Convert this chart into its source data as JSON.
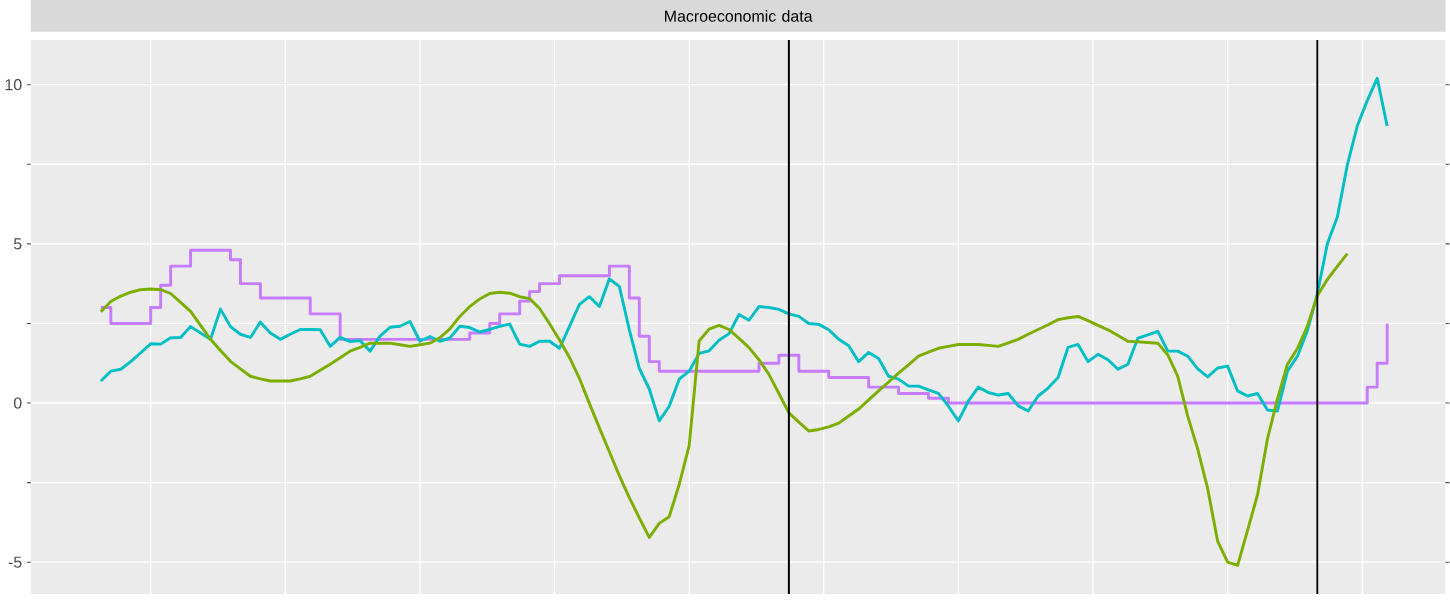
{
  "chart_data": {
    "type": "line",
    "title": "Macroeconomic data",
    "grid": true,
    "tick_labels": "y",
    "categories": [
      null,
      null,
      null,
      null,
      null,
      null,
      null,
      null,
      null,
      null,
      null,
      null,
      null,
      null,
      null,
      null,
      null,
      null,
      null,
      null,
      null,
      null,
      null,
      null,
      null,
      null,
      null,
      null,
      null,
      null,
      null,
      null,
      null,
      null,
      null,
      null,
      null,
      null,
      null,
      null,
      null,
      null,
      null,
      null,
      null,
      null,
      null,
      null,
      null,
      null,
      null,
      null,
      null,
      null,
      null,
      null,
      null,
      null,
      null,
      null,
      null,
      null,
      null,
      null,
      null,
      null,
      null,
      null,
      null,
      null,
      null,
      null,
      null,
      null,
      null,
      null,
      null,
      null,
      null,
      null,
      null,
      null,
      null,
      null,
      null,
      null,
      null,
      null,
      null,
      null,
      null,
      null,
      null,
      null,
      null,
      null,
      null,
      null,
      null,
      null,
      null,
      null,
      null,
      null,
      null,
      null,
      null,
      null,
      null,
      null,
      null,
      null,
      null,
      null,
      null,
      null,
      null,
      null,
      null,
      null,
      null,
      null,
      null,
      null,
      null,
      null,
      null,
      null,
      null,
      null
    ],
    "ylim": [
      -6,
      11.4
    ],
    "yticks": [
      -5,
      {
        "value": -2.5,
        "label": null
      },
      0,
      {
        "value": 2.5,
        "label": null
      },
      5,
      {
        "value": 7.5,
        "label": null
      },
      10
    ],
    "series": [
      {
        "type": "step",
        "color": "#c77cff",
        "values": [
          3.0,
          2.5,
          2.5,
          2.5,
          2.5,
          3.0,
          3.7,
          4.3,
          4.3,
          4.8,
          4.8,
          4.8,
          4.8,
          4.5,
          3.75,
          3.75,
          3.3,
          3.3,
          3.3,
          3.3,
          3.3,
          2.8,
          2.8,
          2.8,
          2.0,
          2.0,
          2.0,
          2.0,
          2.0,
          2.0,
          2.0,
          2.0,
          2.0,
          2.0,
          2.0,
          2.0,
          2.0,
          2.2,
          2.2,
          2.5,
          2.8,
          2.8,
          3.2,
          3.5,
          3.75,
          3.75,
          4.0,
          4.0,
          4.0,
          4.0,
          4.0,
          4.3,
          4.3,
          3.3,
          2.1,
          1.3,
          1.0,
          1.0,
          1.0,
          1.0,
          1.0,
          1.0,
          1.0,
          1.0,
          1.0,
          1.0,
          1.25,
          1.25,
          1.5,
          1.5,
          1.0,
          1.0,
          1.0,
          0.8,
          0.8,
          0.8,
          0.8,
          0.5,
          0.5,
          0.5,
          0.3,
          0.3,
          0.3,
          0.15,
          0.15,
          0,
          0,
          0,
          0,
          0,
          0,
          0,
          0,
          0,
          0,
          0,
          0,
          0,
          0,
          0,
          0,
          0,
          0,
          0,
          0,
          0,
          0,
          0,
          0,
          0,
          0,
          0,
          0,
          0,
          0,
          0,
          0,
          0,
          0,
          0,
          0,
          0,
          0,
          0,
          0,
          0,
          0,
          0.5,
          1.25,
          2.5
        ]
      },
      {
        "color": "#00bfc4",
        "values": [
          0.69,
          1.0,
          1.06,
          1.3,
          1.58,
          1.86,
          1.85,
          2.05,
          2.06,
          2.4,
          2.2,
          2.0,
          2.95,
          2.4,
          2.16,
          2.06,
          2.54,
          2.2,
          2.0,
          2.16,
          2.31,
          2.31,
          2.3,
          1.78,
          2.06,
          1.93,
          1.96,
          1.63,
          2.1,
          2.38,
          2.41,
          2.56,
          1.94,
          2.09,
          1.94,
          2.04,
          2.41,
          2.37,
          2.23,
          2.31,
          2.41,
          2.48,
          1.85,
          1.78,
          1.94,
          1.94,
          1.72,
          2.41,
          3.1,
          3.34,
          3.03,
          3.9,
          3.66,
          2.3,
          1.09,
          0.44,
          -0.56,
          -0.1,
          0.75,
          1.0,
          1.56,
          1.64,
          1.97,
          2.18,
          2.78,
          2.6,
          3.03,
          3.0,
          2.94,
          2.8,
          2.72,
          2.5,
          2.47,
          2.3,
          2.0,
          1.8,
          1.3,
          1.59,
          1.4,
          0.84,
          0.75,
          0.53,
          0.53,
          0.41,
          0.3,
          -0.1,
          -0.56,
          0.06,
          0.5,
          0.33,
          0.25,
          0.3,
          -0.09,
          -0.25,
          0.22,
          0.47,
          0.8,
          1.75,
          1.84,
          1.3,
          1.53,
          1.36,
          1.06,
          1.22,
          2.04,
          2.14,
          2.25,
          1.63,
          1.63,
          1.47,
          1.07,
          0.82,
          1.1,
          1.16,
          0.38,
          0.22,
          0.3,
          -0.22,
          -0.25,
          1.0,
          1.47,
          2.27,
          3.44,
          5.0,
          5.84,
          7.47,
          8.7,
          9.5,
          10.2,
          8.7
        ]
      },
      {
        "color": "#7cae00",
        "values": [
          2.87,
          3.19,
          3.36,
          3.48,
          3.56,
          3.58,
          3.56,
          3.44,
          3.16,
          2.88,
          2.44,
          2.0,
          1.65,
          1.31,
          1.07,
          0.84,
          0.76,
          0.69,
          0.69,
          0.69,
          0.76,
          0.84,
          1.03,
          1.22,
          1.42,
          1.63,
          1.75,
          1.88,
          1.88,
          1.88,
          1.83,
          1.78,
          1.83,
          1.88,
          2.05,
          2.33,
          2.72,
          3.03,
          3.27,
          3.44,
          3.48,
          3.45,
          3.34,
          3.28,
          2.97,
          2.49,
          1.98,
          1.43,
          0.77,
          -0.02,
          -0.78,
          -1.53,
          -2.28,
          -2.97,
          -3.61,
          -4.22,
          -3.78,
          -3.57,
          -2.56,
          -1.34,
          1.95,
          2.32,
          2.44,
          2.31,
          2.03,
          1.74,
          1.36,
          0.9,
          0.3,
          -0.31,
          -0.6,
          -0.88,
          -0.83,
          -0.75,
          -0.63,
          -0.41,
          -0.19,
          0.1,
          0.38,
          0.66,
          0.94,
          1.2,
          1.47,
          1.6,
          1.72,
          1.78,
          1.84,
          1.84,
          1.84,
          1.81,
          1.78,
          1.89,
          2.0,
          2.16,
          2.31,
          2.46,
          2.62,
          2.68,
          2.72,
          2.59,
          2.44,
          2.3,
          2.12,
          1.94,
          1.92,
          1.9,
          1.88,
          1.51,
          0.84,
          -0.41,
          -1.45,
          -2.69,
          -4.34,
          -5.0,
          -5.1,
          -4.0,
          -2.88,
          -1.12,
          0.13,
          1.22,
          1.71,
          2.42,
          3.37,
          3.88,
          4.29,
          4.69,
          null,
          null,
          null,
          null
        ]
      }
    ]
  }
}
